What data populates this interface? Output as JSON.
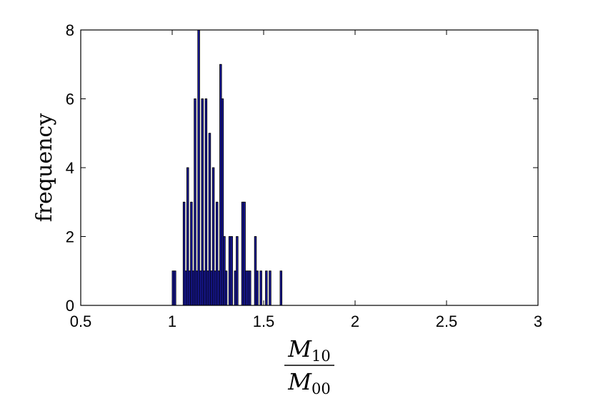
{
  "chart_data": {
    "type": "bar",
    "title": "",
    "ylabel": "frequency",
    "xlabel": {
      "numerator": {
        "base": "M",
        "sub": "10"
      },
      "denominator": {
        "base": "M",
        "sub": "00"
      }
    },
    "xlim": [
      0.5,
      3
    ],
    "ylim": [
      0,
      8
    ],
    "xticks": [
      "0.5",
      "1",
      "1.5",
      "2",
      "2.5",
      "3"
    ],
    "yticks": [
      "0",
      "2",
      "4",
      "6",
      "8"
    ],
    "bar_width": 0.01,
    "bar_color": "#1a1aa8",
    "bar_edge_color": "#000000",
    "bars": [
      {
        "x": 1.0,
        "y": 1
      },
      {
        "x": 1.01,
        "y": 1
      },
      {
        "x": 1.06,
        "y": 3
      },
      {
        "x": 1.07,
        "y": 1
      },
      {
        "x": 1.08,
        "y": 4
      },
      {
        "x": 1.09,
        "y": 1
      },
      {
        "x": 1.1,
        "y": 3
      },
      {
        "x": 1.11,
        "y": 1
      },
      {
        "x": 1.12,
        "y": 6
      },
      {
        "x": 1.13,
        "y": 1
      },
      {
        "x": 1.14,
        "y": 8
      },
      {
        "x": 1.15,
        "y": 1
      },
      {
        "x": 1.16,
        "y": 6
      },
      {
        "x": 1.17,
        "y": 1
      },
      {
        "x": 1.18,
        "y": 6
      },
      {
        "x": 1.19,
        "y": 1
      },
      {
        "x": 1.2,
        "y": 5
      },
      {
        "x": 1.21,
        "y": 1
      },
      {
        "x": 1.22,
        "y": 4
      },
      {
        "x": 1.23,
        "y": 1
      },
      {
        "x": 1.24,
        "y": 3
      },
      {
        "x": 1.25,
        "y": 1
      },
      {
        "x": 1.26,
        "y": 7
      },
      {
        "x": 1.27,
        "y": 6
      },
      {
        "x": 1.28,
        "y": 2
      },
      {
        "x": 1.29,
        "y": 1
      },
      {
        "x": 1.31,
        "y": 2
      },
      {
        "x": 1.32,
        "y": 2
      },
      {
        "x": 1.34,
        "y": 1
      },
      {
        "x": 1.35,
        "y": 2
      },
      {
        "x": 1.38,
        "y": 3
      },
      {
        "x": 1.39,
        "y": 3
      },
      {
        "x": 1.4,
        "y": 1
      },
      {
        "x": 1.41,
        "y": 1
      },
      {
        "x": 1.42,
        "y": 1
      },
      {
        "x": 1.45,
        "y": 2
      },
      {
        "x": 1.46,
        "y": 1
      },
      {
        "x": 1.48,
        "y": 1
      },
      {
        "x": 1.51,
        "y": 1
      },
      {
        "x": 1.53,
        "y": 1
      },
      {
        "x": 1.59,
        "y": 1
      }
    ]
  }
}
